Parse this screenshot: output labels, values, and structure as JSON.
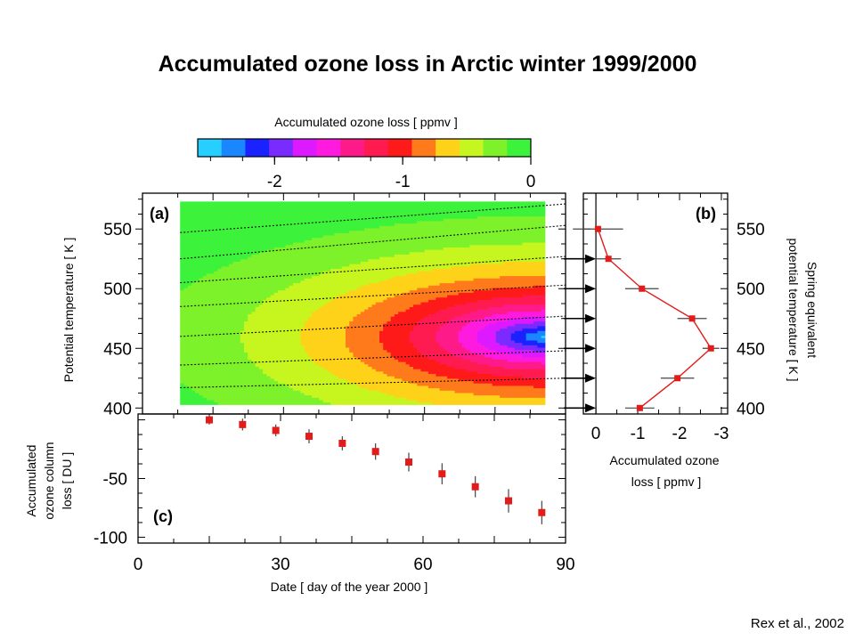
{
  "title": "Accumulated ozone loss in Arctic winter 1999/2000",
  "credit": "Rex et al., 2002",
  "chart_data": [
    {
      "panel": "(a)",
      "type": "heatmap",
      "colorbar": {
        "label": "Accumulated ozone loss [ ppmv ]",
        "range": [
          -2.6,
          0
        ],
        "ticks": [
          -2,
          -1,
          0
        ],
        "colors": [
          "#26cfff",
          "#1a86ff",
          "#1a23ff",
          "#7a2bff",
          "#dd1aff",
          "#ff1adf",
          "#ff1a8a",
          "#ff1a50",
          "#ff1a1a",
          "#ff7a1a",
          "#ffd21a",
          "#c7f51f",
          "#7df22a",
          "#3cf23a"
        ]
      },
      "xlim": [
        0,
        90
      ],
      "ylim": [
        395,
        580
      ],
      "yticks": [
        400,
        450,
        500,
        550
      ],
      "ylabel": "Potential temperature [ K ]",
      "data_extent": {
        "x": [
          8,
          85
        ],
        "y": [
          403,
          573
        ]
      },
      "field": {
        "center": {
          "x": 85,
          "y": 460
        },
        "contour_levels": [
          -0.2,
          -0.4,
          -0.6,
          -0.8,
          -1.0,
          -1.2,
          -1.4,
          -1.6,
          -1.8,
          -2.0,
          -2.2,
          -2.4
        ]
      },
      "isentropes": [
        {
          "points": [
            [
              8,
              547
            ],
            [
              90,
              571
            ]
          ]
        },
        {
          "points": [
            [
              8,
              525
            ],
            [
              90,
              553
            ]
          ]
        },
        {
          "points": [
            [
              8,
              505
            ],
            [
              90,
              527
            ]
          ]
        },
        {
          "points": [
            [
              8,
              485
            ],
            [
              90,
              503
            ]
          ]
        },
        {
          "points": [
            [
              8,
              460
            ],
            [
              90,
              477
            ]
          ]
        },
        {
          "points": [
            [
              8,
              436
            ],
            [
              90,
              448
            ]
          ]
        },
        {
          "points": [
            [
              8,
              417
            ],
            [
              90,
              425
            ]
          ]
        }
      ]
    },
    {
      "panel": "(b)",
      "type": "line",
      "xlabel": "Accumulated ozone loss [ ppmv ]",
      "ylabel": "Spring equivalent potential temperature [ K ]",
      "xlim": [
        0.3,
        -3.15
      ],
      "ylim": [
        395,
        580
      ],
      "xticks": [
        0,
        -1,
        -2,
        -3
      ],
      "xtick_labels": [
        "0",
        "-1",
        "-2",
        "-3"
      ],
      "yticks": [
        400,
        450,
        500,
        550
      ],
      "series": [
        {
          "x": [
            -0.05,
            -0.3,
            -1.1,
            -2.3,
            -2.75,
            -1.95,
            -1.05
          ],
          "y": [
            550,
            525,
            500,
            475,
            450,
            425,
            400
          ],
          "xerr": [
            0.6,
            0.3,
            0.4,
            0.35,
            0.2,
            0.4,
            0.35
          ]
        }
      ],
      "arrow_y": [
        525,
        500,
        475,
        450,
        425,
        400
      ]
    },
    {
      "panel": "(c)",
      "type": "scatter",
      "xlabel": "Date [ day of the year 2000 ]",
      "ylabel": "Accumulated ozone column loss [ DU ]",
      "xlim": [
        0,
        90
      ],
      "ylim": [
        -105,
        5
      ],
      "xticks": [
        0,
        30,
        60,
        90
      ],
      "yticks": [
        -50,
        -100
      ],
      "series": [
        {
          "x": [
            15,
            22,
            29,
            36,
            43,
            50,
            57,
            64,
            71,
            78,
            85
          ],
          "y": [
            0,
            -4,
            -9,
            -14,
            -20,
            -27,
            -36,
            -46,
            -57,
            -69,
            -79
          ],
          "yerr": [
            4,
            5,
            5,
            6,
            6,
            7,
            8,
            9,
            9,
            10,
            10
          ]
        }
      ]
    }
  ]
}
